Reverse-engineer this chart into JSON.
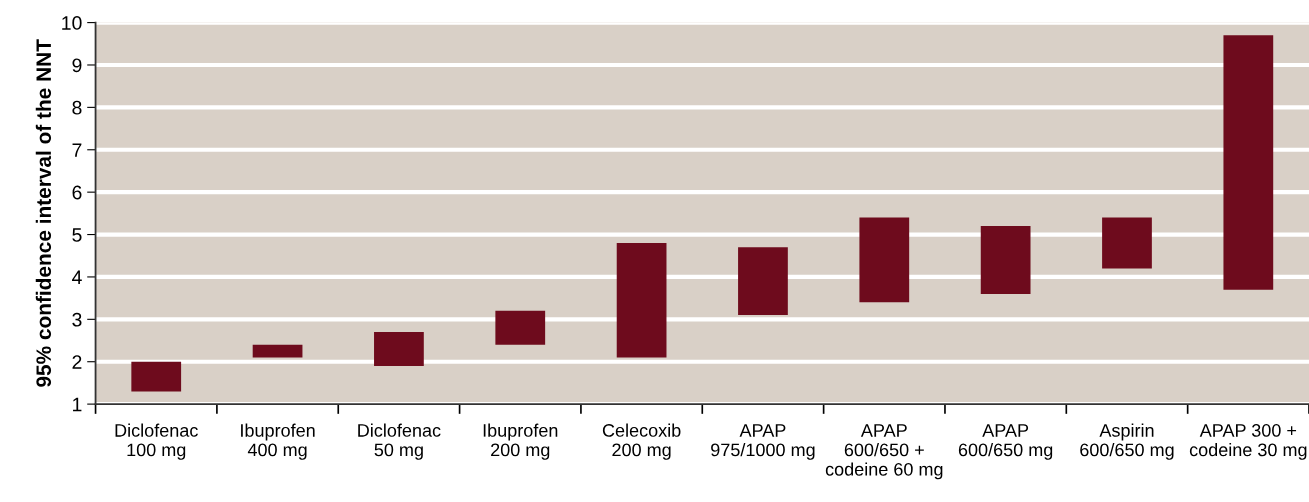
{
  "chart_data": {
    "type": "bar",
    "ylabel": "95% confidence interval of the NNT",
    "categories": [
      "Diclofenac\n100 mg",
      "Ibuprofen\n400 mg",
      "Diclofenac\n50 mg",
      "Ibuprofen\n200 mg",
      "Celecoxib\n200 mg",
      "APAP\n975/1000 mg",
      "APAP\n600/650 +\ncodeine 60 mg",
      "APAP\n600/650 mg",
      "Aspirin\n600/650 mg",
      "APAP 300 +\ncodeine 30 mg"
    ],
    "base": [
      1.3,
      2.1,
      1.9,
      2.4,
      2.1,
      3.1,
      3.4,
      3.6,
      4.2,
      3.7
    ],
    "values": [
      0.7,
      0.3,
      0.8,
      0.8,
      2.7,
      1.6,
      2.0,
      1.6,
      1.2,
      6.0
    ],
    "color": "#6e0b1d",
    "ylim": [
      1,
      10
    ],
    "yticks": [
      1,
      2,
      3,
      4,
      5,
      6,
      7,
      8,
      9,
      10
    ],
    "grid": "y"
  }
}
